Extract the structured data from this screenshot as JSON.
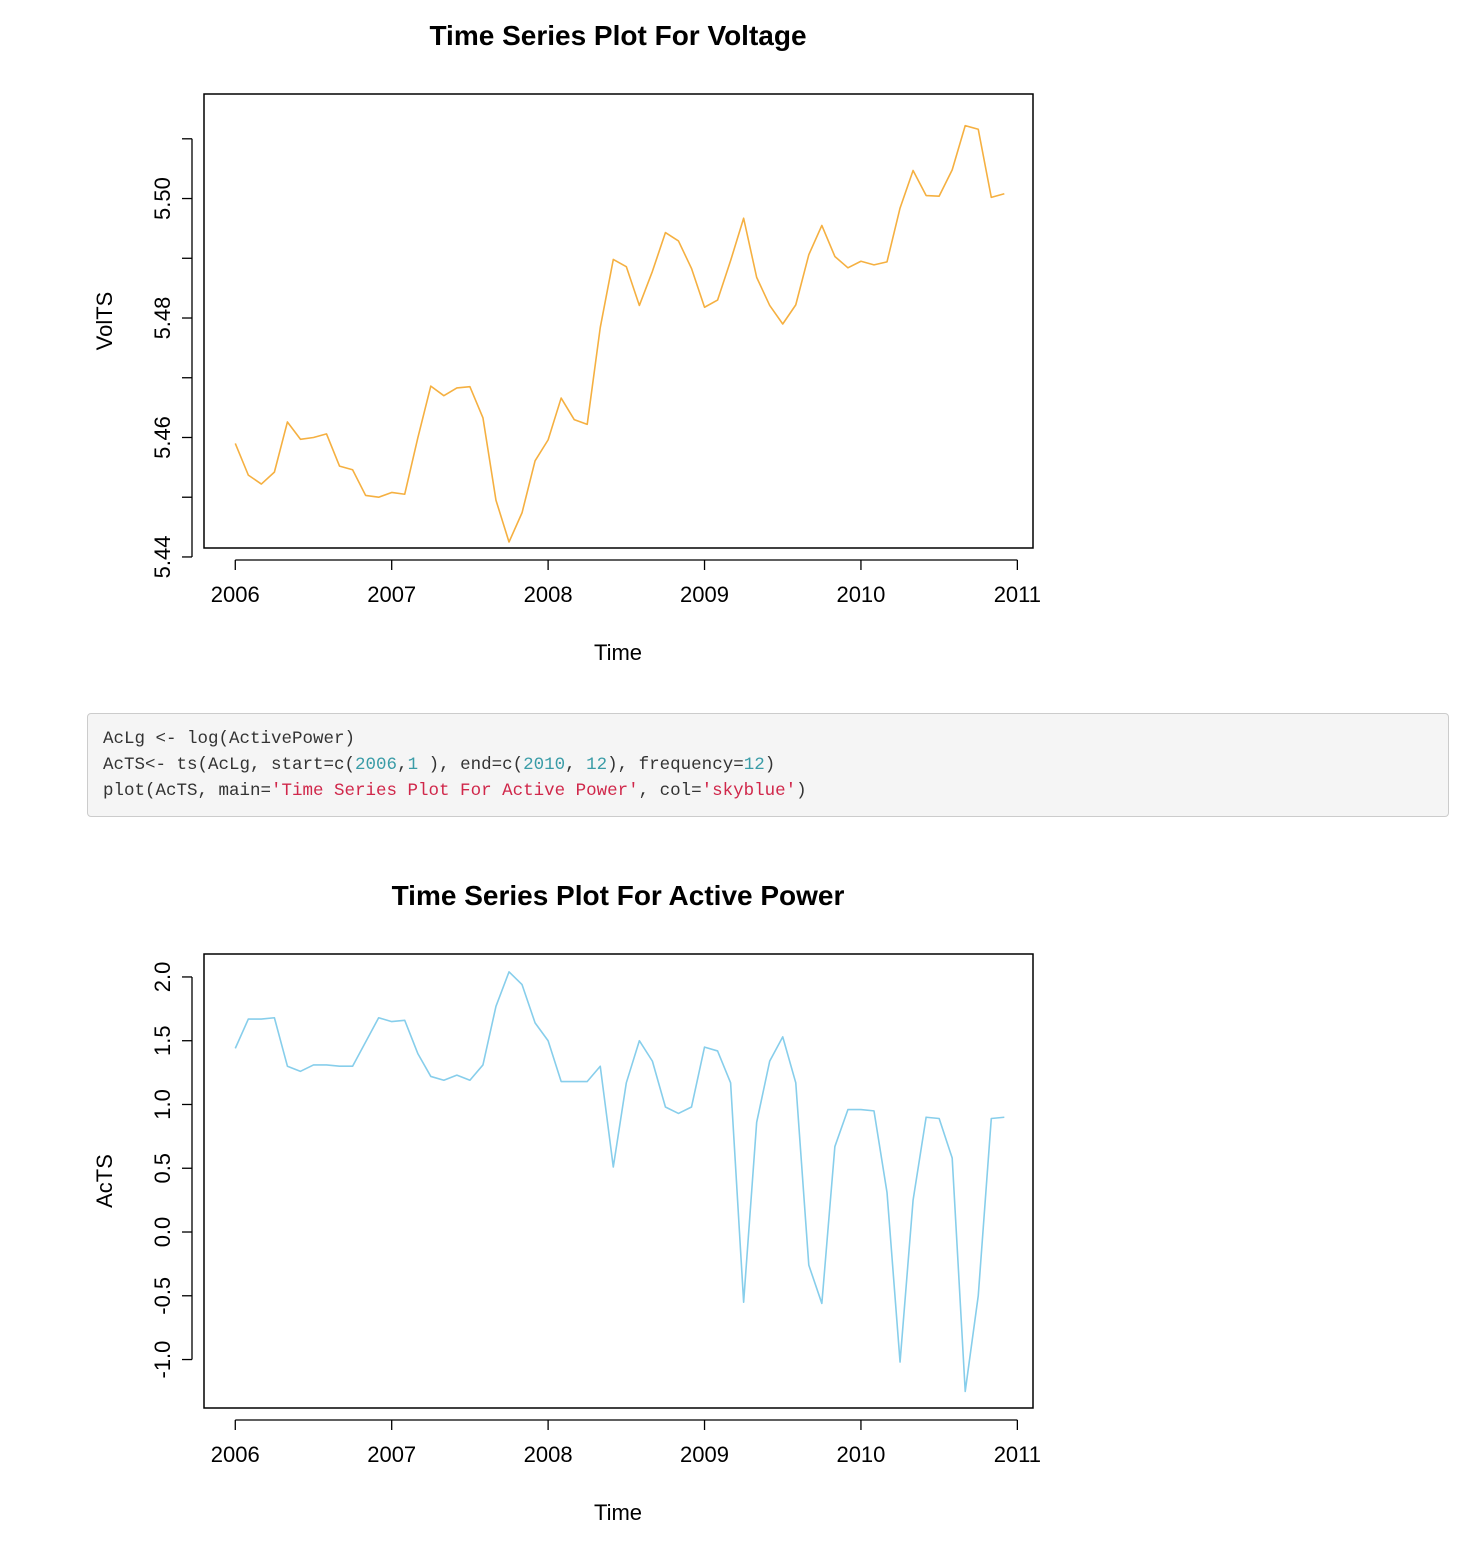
{
  "chart_data": [
    {
      "type": "line",
      "title": "Time Series Plot For Voltage",
      "xlabel": "Time",
      "ylabel": "VolTS",
      "color": "#F5B041",
      "xlim": [
        2005.8,
        2011.1
      ],
      "ylim": [
        5.4415,
        5.5175
      ],
      "xticks": [
        2006,
        2007,
        2008,
        2009,
        2010,
        2011
      ],
      "yticks": [
        5.44,
        5.45,
        5.46,
        5.47,
        5.48,
        5.49,
        5.5,
        5.51
      ],
      "yticklabels": [
        "5.44",
        "",
        "5.46",
        "",
        "5.48",
        "",
        "5.50",
        ""
      ],
      "start": [
        2006,
        1
      ],
      "frequency": 12,
      "values": [
        5.459,
        5.4537,
        5.4522,
        5.4542,
        5.4626,
        5.4597,
        5.46,
        5.4606,
        5.4552,
        5.4546,
        5.4503,
        5.45,
        5.4508,
        5.4505,
        5.4599,
        5.4686,
        5.467,
        5.4683,
        5.4685,
        5.4633,
        5.4495,
        5.4425,
        5.4474,
        5.4561,
        5.4596,
        5.4666,
        5.463,
        5.4622,
        5.4784,
        5.4898,
        5.4886,
        5.4821,
        5.4878,
        5.4943,
        5.4929,
        5.4883,
        5.4818,
        5.483,
        5.4896,
        5.4967,
        5.4868,
        5.4821,
        5.479,
        5.4822,
        5.4906,
        5.4955,
        5.4903,
        5.4884,
        5.4895,
        5.4889,
        5.4894,
        5.4984,
        5.5047,
        5.5005,
        5.5004,
        5.5048,
        5.5122,
        5.5116,
        5.5002,
        5.5008
      ]
    },
    {
      "type": "line",
      "title": "Time Series Plot For Active Power",
      "xlabel": "Time",
      "ylabel": "AcTS",
      "color": "#87CEEB",
      "xlim": [
        2005.8,
        2011.1
      ],
      "ylim": [
        -1.38,
        2.18
      ],
      "xticks": [
        2006,
        2007,
        2008,
        2009,
        2010,
        2011
      ],
      "yticks": [
        -1.0,
        -0.5,
        0.0,
        0.5,
        1.0,
        1.5,
        2.0
      ],
      "yticklabels": [
        "-1.0",
        "-0.5",
        "0.0",
        "0.5",
        "1.0",
        "1.5",
        "2.0"
      ],
      "start": [
        2006,
        1
      ],
      "frequency": 12,
      "values": [
        1.44,
        1.67,
        1.67,
        1.68,
        1.3,
        1.26,
        1.31,
        1.31,
        1.3,
        1.3,
        1.49,
        1.68,
        1.65,
        1.66,
        1.4,
        1.22,
        1.19,
        1.23,
        1.19,
        1.31,
        1.77,
        2.04,
        1.94,
        1.64,
        1.5,
        1.18,
        1.18,
        1.18,
        1.3,
        0.51,
        1.17,
        1.5,
        1.34,
        0.98,
        0.93,
        0.98,
        1.45,
        1.42,
        1.17,
        -0.55,
        0.86,
        1.34,
        1.53,
        1.17,
        -0.26,
        -0.56,
        0.67,
        0.96,
        0.96,
        0.95,
        0.31,
        -1.02,
        0.25,
        0.9,
        0.89,
        0.58,
        -1.25,
        -0.5,
        0.89,
        0.9
      ]
    }
  ],
  "code": {
    "lines": [
      [
        {
          "t": "AcLg <- log(ActivePower)",
          "c": "plain"
        }
      ],
      [
        {
          "t": "AcTS<- ts(AcLg, start=c(",
          "c": "plain"
        },
        {
          "t": "2006",
          "c": "num"
        },
        {
          "t": ",",
          "c": "plain"
        },
        {
          "t": "1",
          "c": "num"
        },
        {
          "t": " ), end=c(",
          "c": "plain"
        },
        {
          "t": "2010",
          "c": "num"
        },
        {
          "t": ", ",
          "c": "plain"
        },
        {
          "t": "12",
          "c": "num"
        },
        {
          "t": "), frequency=",
          "c": "plain"
        },
        {
          "t": "12",
          "c": "num"
        },
        {
          "t": ")",
          "c": "plain"
        }
      ],
      [
        {
          "t": "plot(AcTS, main=",
          "c": "plain"
        },
        {
          "t": "'Time Series Plot For Active Power'",
          "c": "str"
        },
        {
          "t": ", col=",
          "c": "plain"
        },
        {
          "t": "'skyblue'",
          "c": "str"
        },
        {
          "t": ")",
          "c": "plain"
        }
      ]
    ]
  }
}
